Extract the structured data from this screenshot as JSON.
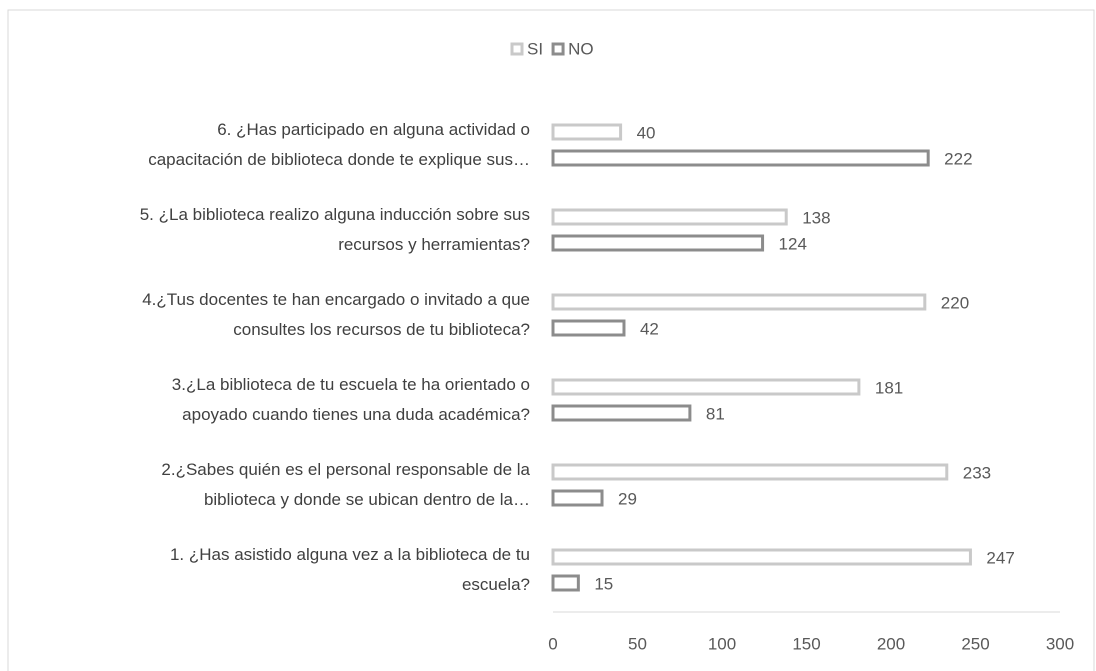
{
  "chart_data": {
    "type": "bar",
    "orientation": "horizontal",
    "categories": [
      "6. ¿Has participado en alguna actividad o\ncapacitación de biblioteca donde te explique sus…",
      "5. ¿La biblioteca realizo  alguna inducción sobre sus\nrecursos y herramientas?",
      "4.¿Tus docentes te han encargado o invitado a que\nconsultes los recursos de tu biblioteca?",
      "3.¿La biblioteca de tu escuela te ha orientado o\napoyado cuando tienes una duda académica?",
      "2.¿Sabes quién es el personal responsable de la\nbiblioteca y donde se ubican dentro de la…",
      "1. ¿Has asistido alguna vez a la biblioteca de tu\nescuela?"
    ],
    "series": [
      {
        "name": "SI",
        "color": "#c9c9c9",
        "values": [
          40,
          138,
          220,
          181,
          233,
          247
        ]
      },
      {
        "name": "NO",
        "color": "#8c8c8c",
        "values": [
          222,
          124,
          42,
          81,
          29,
          15
        ]
      }
    ],
    "xlim": [
      0,
      300
    ],
    "xticks": [
      0,
      50,
      100,
      150,
      200,
      250,
      300
    ],
    "legend": "top",
    "grid": false
  }
}
